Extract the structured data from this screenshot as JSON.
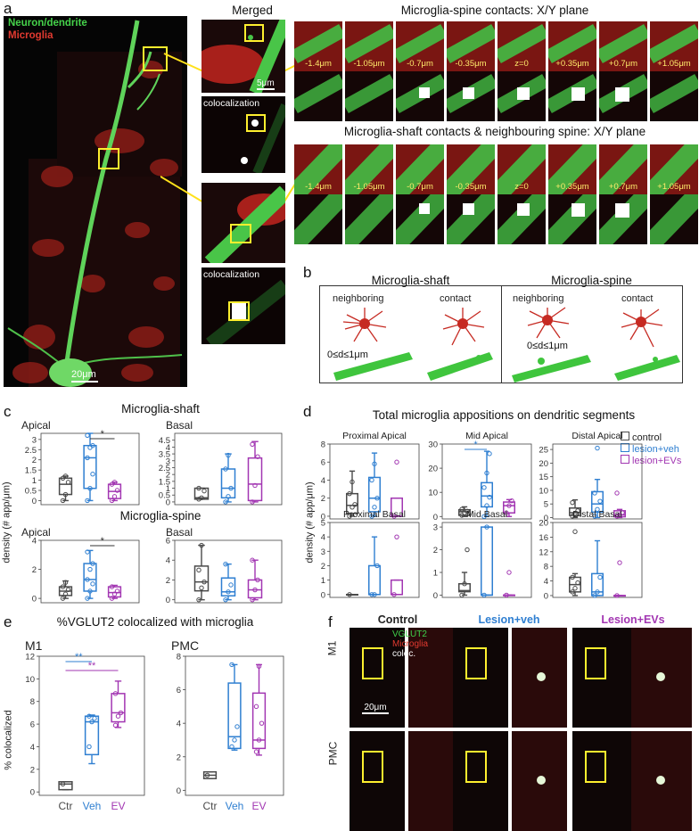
{
  "panel_letters": {
    "a": "a",
    "b": "b",
    "c": "c",
    "d": "d",
    "e": "e",
    "f": "f"
  },
  "panel_a": {
    "legend_neuron": "Neuron/dendrite",
    "legend_microglia": "Microglia",
    "scalebar_main": "20μm",
    "merged_title": "Merged",
    "scalebar_merged": "5μm",
    "colocalization_label": "colocalization",
    "spine_title": "Microglia-spine contacts: X/Y plane",
    "shaft_title": "Microglia-shaft contacts & neighbouring spine: X/Y plane",
    "z_labels": [
      "-1.4μm",
      "-1.05μm",
      "-0.7μm",
      "-0.35μm",
      "z=0",
      "+0.35μm",
      "+0.7μm",
      "+1.05μm"
    ],
    "colors": {
      "neuron": "#45c24a",
      "microglia": "#c52a22",
      "coloc": "#ffffff",
      "box": "#ffef2e"
    }
  },
  "panel_b": {
    "left_title": "Microglia-shaft",
    "right_title": "Microglia-spine",
    "neighboring": "neighboring",
    "contact": "contact",
    "distance": "0≤d≤1μm"
  },
  "panel_c": {
    "shaft_title": "Microglia-shaft",
    "spine_title": "Microglia-spine",
    "apical": "Apical",
    "basal": "Basal",
    "ylabel": "density (# app/μm)",
    "sig": "*"
  },
  "panel_d": {
    "title": "Total microglia appositions on dendritic segments",
    "ylabel": "density (# app/μm)",
    "legend": [
      "control",
      "lesion+veh",
      "lesion+EVs"
    ],
    "sig": "*"
  },
  "panel_e": {
    "title": "%VGLUT2 colocalized with microglia",
    "ylabel": "% colocalized",
    "m1": "M1",
    "pmc": "PMC",
    "xcats": [
      "Ctr",
      "Veh",
      "EV"
    ],
    "sig": "**"
  },
  "panel_f": {
    "col_control": "Control",
    "col_veh": "Lesion+veh",
    "col_ev": "Lesion+EVs",
    "row_m1": "M1",
    "row_pmc": "PMC",
    "legend_vglut2": "VGLUT2",
    "legend_microglia": "Microglia",
    "legend_coloc": "coloc.",
    "scalebar": "20μm"
  },
  "group_colors": {
    "control": "#4a4a4a",
    "veh": "#2f7fd1",
    "ev": "#a236b2"
  },
  "chart_data": [
    {
      "type": "box",
      "id": "c-shaft-apical",
      "title": "Microglia-shaft",
      "subtitle": "Apical",
      "ylabel": "density (# app/μm)",
      "ylim": [
        -0.2,
        3.3
      ],
      "yticks": [
        0,
        0.5,
        1,
        1.5,
        2,
        2.5,
        3
      ],
      "series": [
        {
          "name": "control",
          "q1": 0.3,
          "median": 0.8,
          "q3": 1.1,
          "whisker_low": 0.0,
          "whisker_high": 1.2,
          "points": [
            0.0,
            0.3,
            0.9,
            1.1,
            1.2
          ]
        },
        {
          "name": "lesion+veh",
          "q1": 0.6,
          "median": 2.1,
          "q3": 2.7,
          "whisker_low": 0.0,
          "whisker_high": 3.3,
          "points": [
            0.0,
            0.6,
            1.3,
            2.1,
            2.6,
            2.7,
            3.2
          ]
        },
        {
          "name": "lesion+EVs",
          "q1": 0.1,
          "median": 0.45,
          "q3": 0.8,
          "whisker_low": 0.0,
          "whisker_high": 0.9,
          "points": [
            0.0,
            0.2,
            0.5,
            0.8,
            0.9
          ]
        }
      ],
      "significance": [
        {
          "from": 1,
          "to": 2,
          "label": "*"
        }
      ]
    },
    {
      "type": "box",
      "id": "c-shaft-basal",
      "subtitle": "Basal",
      "ylim": [
        -0.2,
        5
      ],
      "yticks": [
        0,
        0.5,
        1,
        1.5,
        2,
        2.5,
        3,
        3.5,
        4,
        4.5
      ],
      "series": [
        {
          "name": "control",
          "q1": 0.2,
          "median": 0.3,
          "q3": 1.0,
          "whisker_low": 0.2,
          "whisker_high": 1.0,
          "points": [
            0.2,
            0.3,
            0.8,
            1.0
          ]
        },
        {
          "name": "lesion+veh",
          "q1": 0.3,
          "median": 1.0,
          "q3": 2.4,
          "whisker_low": 0.0,
          "whisker_high": 3.5,
          "points": [
            0.0,
            0.4,
            1.0,
            2.4,
            3.4
          ]
        },
        {
          "name": "lesion+EVs",
          "q1": 0.1,
          "median": 1.3,
          "q3": 3.2,
          "whisker_low": 0.0,
          "whisker_high": 4.4,
          "points": [
            0.0,
            1.2,
            3.3,
            4.2
          ]
        }
      ]
    },
    {
      "type": "box",
      "id": "c-spine-apical",
      "title": "Microglia-spine",
      "subtitle": "Apical",
      "ylim": [
        -0.3,
        4
      ],
      "yticks": [
        0,
        2,
        4
      ],
      "series": [
        {
          "name": "control",
          "q1": 0.2,
          "median": 0.5,
          "q3": 0.8,
          "whisker_low": 0.0,
          "whisker_high": 1.2,
          "points": [
            0.0,
            0.3,
            0.6,
            0.8,
            1.1
          ]
        },
        {
          "name": "lesion+veh",
          "q1": 0.5,
          "median": 1.3,
          "q3": 2.4,
          "whisker_low": 0.0,
          "whisker_high": 3.3,
          "points": [
            0.0,
            0.5,
            1.0,
            1.3,
            2.0,
            2.4,
            3.2
          ]
        },
        {
          "name": "lesion+EVs",
          "q1": 0.1,
          "median": 0.4,
          "q3": 0.8,
          "whisker_low": 0.0,
          "whisker_high": 0.9,
          "points": [
            0.0,
            0.3,
            0.5,
            0.8
          ]
        }
      ],
      "significance": [
        {
          "from": 1,
          "to": 2,
          "label": "*"
        }
      ]
    },
    {
      "type": "box",
      "id": "c-spine-basal",
      "subtitle": "Basal",
      "ylim": [
        -0.3,
        6
      ],
      "yticks": [
        0,
        2,
        4,
        6
      ],
      "series": [
        {
          "name": "control",
          "q1": 0.9,
          "median": 1.8,
          "q3": 3.4,
          "whisker_low": 0.0,
          "whisker_high": 5.5,
          "points": [
            0.0,
            1.2,
            1.8,
            3.0,
            5.5
          ]
        },
        {
          "name": "lesion+veh",
          "q1": 0.4,
          "median": 0.8,
          "q3": 2.2,
          "whisker_low": 0.0,
          "whisker_high": 3.6,
          "points": [
            0.0,
            0.8,
            1.5,
            3.6
          ]
        },
        {
          "name": "lesion+EVs",
          "q1": 0.2,
          "median": 1.0,
          "q3": 2.0,
          "whisker_low": 0.0,
          "whisker_high": 4.0,
          "points": [
            0.0,
            1.0,
            2.0,
            4.0
          ]
        }
      ]
    },
    {
      "type": "box",
      "id": "d-prox-apical",
      "subtitle": "Proximal Apical",
      "ylim": [
        -0.3,
        8
      ],
      "yticks": [
        0,
        2,
        4,
        6,
        8
      ],
      "series": [
        {
          "name": "control",
          "q1": 0.3,
          "median": 1.2,
          "q3": 2.5,
          "whisker_low": 0.0,
          "whisker_high": 5.0,
          "points": [
            0.0,
            1.0,
            1.3,
            2.5,
            3.8
          ]
        },
        {
          "name": "lesion+veh",
          "q1": 0.5,
          "median": 2.0,
          "q3": 4.3,
          "whisker_low": 0.0,
          "whisker_high": 7.0,
          "points": [
            0.0,
            1.0,
            2.0,
            4.0,
            5.8
          ]
        },
        {
          "name": "lesion+EVs",
          "q1": 0.0,
          "median": 0.0,
          "q3": 2.0,
          "whisker_low": 0.0,
          "whisker_high": 2.0,
          "points": [
            0.0,
            6.0
          ]
        }
      ]
    },
    {
      "type": "box",
      "id": "d-mid-apical",
      "subtitle": "Mid Apical",
      "ylim": [
        -1,
        30
      ],
      "yticks": [
        0,
        10,
        20,
        30
      ],
      "series": [
        {
          "name": "control",
          "q1": 0.5,
          "median": 2.0,
          "q3": 2.8,
          "whisker_low": 0.0,
          "whisker_high": 4.0,
          "points": [
            0.5,
            1.5,
            2.2,
            3.0
          ]
        },
        {
          "name": "lesion+veh",
          "q1": 4.0,
          "median": 8.5,
          "q3": 14.0,
          "whisker_low": 0.0,
          "whisker_high": 27.0,
          "points": [
            0.0,
            4.5,
            8.0,
            12.0,
            18.0,
            26.0
          ]
        },
        {
          "name": "lesion+EVs",
          "q1": 1.5,
          "median": 4.5,
          "q3": 6.0,
          "whisker_low": 0.0,
          "whisker_high": 7.0,
          "points": [
            1.5,
            4.5,
            6.5
          ]
        }
      ],
      "significance": [
        {
          "from": 0,
          "to": 1,
          "label": "*"
        }
      ]
    },
    {
      "type": "box",
      "id": "d-dist-apical",
      "subtitle": "Distal Apical",
      "ylim": [
        -0.5,
        27
      ],
      "yticks": [
        0,
        5,
        10,
        15,
        20,
        25
      ],
      "series": [
        {
          "name": "control",
          "q1": 0.8,
          "median": 1.8,
          "q3": 3.5,
          "whisker_low": 0.0,
          "whisker_high": 6.5,
          "points": [
            0.5,
            1.5,
            2.5,
            5.5
          ]
        },
        {
          "name": "lesion+veh",
          "q1": 2.0,
          "median": 5.0,
          "q3": 9.5,
          "whisker_low": 0.0,
          "whisker_high": 14.0,
          "points": [
            0.5,
            3.0,
            6.0,
            9.0,
            25.5
          ]
        },
        {
          "name": "lesion+EVs",
          "q1": 0.3,
          "median": 1.0,
          "q3": 2.5,
          "whisker_low": 0.0,
          "whisker_high": 3.0,
          "points": [
            0.5,
            1.0,
            1.8,
            9.0
          ]
        }
      ]
    },
    {
      "type": "box",
      "id": "d-prox-basal",
      "subtitle": "Proximal Basal",
      "ylim": [
        -0.2,
        5
      ],
      "yticks": [
        0,
        1,
        2,
        3,
        4,
        5
      ],
      "series": [
        {
          "name": "control",
          "q1": 0.0,
          "median": 0.0,
          "q3": 0.0,
          "whisker_low": 0.0,
          "whisker_high": 0.0,
          "points": [
            0.0
          ]
        },
        {
          "name": "lesion+veh",
          "q1": 0.0,
          "median": 0.0,
          "q3": 2.0,
          "whisker_low": 0.0,
          "whisker_high": 4.0,
          "points": [
            0.0,
            0.0,
            2.0
          ]
        },
        {
          "name": "lesion+EVs",
          "q1": 0.0,
          "median": 0.0,
          "q3": 1.0,
          "whisker_low": 0.0,
          "whisker_high": 1.0,
          "points": [
            0.0,
            4.0
          ]
        }
      ]
    },
    {
      "type": "box",
      "id": "d-mid-basal",
      "subtitle": "Mid Basal",
      "ylim": [
        -0.1,
        3.2
      ],
      "yticks": [
        0,
        1,
        2,
        3
      ],
      "series": [
        {
          "name": "control",
          "q1": 0.15,
          "median": 0.2,
          "q3": 0.5,
          "whisker_low": 0.0,
          "whisker_high": 1.0,
          "points": [
            0.0,
            0.5,
            2.0
          ]
        },
        {
          "name": "lesion+veh",
          "q1": 0.0,
          "median": 0.0,
          "q3": 3.0,
          "whisker_low": 0.0,
          "whisker_high": 3.0,
          "points": [
            0.0,
            3.0
          ]
        },
        {
          "name": "lesion+EVs",
          "q1": 0.0,
          "median": 0.0,
          "q3": 0.0,
          "whisker_low": 0.0,
          "whisker_high": 0.0,
          "points": [
            0.0,
            1.0
          ]
        }
      ]
    },
    {
      "type": "box",
      "id": "d-dist-basal",
      "subtitle": "Distal Basal",
      "ylim": [
        -0.5,
        20
      ],
      "yticks": [
        0,
        4,
        8,
        12,
        16,
        20
      ],
      "series": [
        {
          "name": "control",
          "q1": 1.0,
          "median": 3.0,
          "q3": 5.0,
          "whisker_low": 0.0,
          "whisker_high": 6.0,
          "points": [
            1.0,
            2.0,
            3.5,
            5.0,
            17.5
          ]
        },
        {
          "name": "lesion+veh",
          "q1": 0.0,
          "median": 1.0,
          "q3": 6.0,
          "whisker_low": 0.0,
          "whisker_high": 15.0,
          "points": [
            0.0,
            1.0,
            5.0
          ]
        },
        {
          "name": "lesion+EVs",
          "q1": 0.0,
          "median": 0.0,
          "q3": 0.0,
          "whisker_low": 0.0,
          "whisker_high": 0.0,
          "points": [
            0.0,
            9.0
          ]
        }
      ]
    },
    {
      "type": "box",
      "id": "e-m1",
      "subtitle": "M1",
      "ylabel": "% colocalized",
      "ylim": [
        -0.3,
        12
      ],
      "yticks": [
        0,
        2,
        4,
        6,
        8,
        10,
        12
      ],
      "categories": [
        "Ctr",
        "Veh",
        "EV"
      ],
      "series": [
        {
          "name": "control",
          "q1": 0.2,
          "median": 0.7,
          "q3": 0.9,
          "whisker_low": 0.2,
          "whisker_high": 0.9,
          "points": [
            0.7
          ]
        },
        {
          "name": "lesion+veh",
          "q1": 3.3,
          "median": 6.2,
          "q3": 6.7,
          "whisker_low": 2.5,
          "whisker_high": 6.8,
          "points": [
            4.0,
            6.2,
            6.5,
            6.7
          ]
        },
        {
          "name": "lesion+EVs",
          "q1": 6.2,
          "median": 7.0,
          "q3": 8.7,
          "whisker_low": 5.7,
          "whisker_high": 9.8,
          "points": [
            5.9,
            6.7,
            7.0,
            8.7
          ]
        }
      ],
      "significance": [
        {
          "from": 0,
          "to": 1,
          "label": "**"
        },
        {
          "from": 0,
          "to": 2,
          "label": "**"
        }
      ]
    },
    {
      "type": "box",
      "id": "e-pmc",
      "subtitle": "PMC",
      "ylim": [
        -0.3,
        8
      ],
      "yticks": [
        0,
        2,
        4,
        6,
        8
      ],
      "categories": [
        "Ctr",
        "Veh",
        "EV"
      ],
      "series": [
        {
          "name": "control",
          "q1": 0.7,
          "median": 0.9,
          "q3": 1.1,
          "whisker_low": 0.7,
          "whisker_high": 1.1,
          "points": [
            0.9
          ]
        },
        {
          "name": "lesion+veh",
          "q1": 2.5,
          "median": 3.2,
          "q3": 6.4,
          "whisker_low": 2.4,
          "whisker_high": 7.5,
          "points": [
            2.6,
            3.0,
            3.8,
            7.5
          ]
        },
        {
          "name": "lesion+EVs",
          "q1": 2.5,
          "median": 3.0,
          "q3": 5.8,
          "whisker_low": 2.1,
          "whisker_high": 7.5,
          "points": [
            2.3,
            3.0,
            4.0,
            5.0,
            7.4
          ]
        }
      ]
    }
  ]
}
